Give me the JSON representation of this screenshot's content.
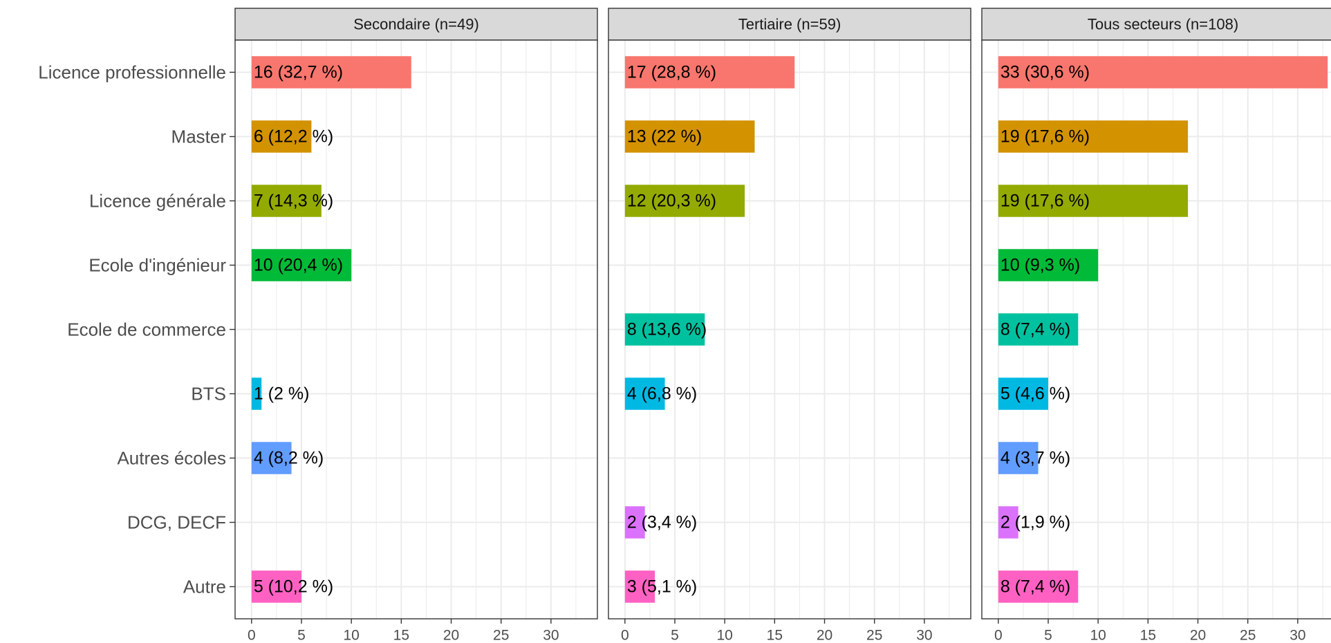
{
  "chart_data": {
    "type": "bar",
    "orientation": "horizontal",
    "categories": [
      "Licence professionnelle",
      "Master",
      "Licence générale",
      "Ecole d'ingénieur",
      "Ecole de commerce",
      "BTS",
      "Autres écoles",
      "DCG, DECF",
      "Autre"
    ],
    "colors": [
      "#F8766D",
      "#D39200",
      "#93AA00",
      "#00BA38",
      "#00C19F",
      "#00B9E3",
      "#619CFF",
      "#DB72FB",
      "#FF61C3"
    ],
    "xlim": [
      -1.65,
      34.65
    ],
    "xticks": [
      0,
      5,
      10,
      15,
      20,
      25,
      30
    ],
    "xtick_labels": [
      "0",
      "5",
      "10",
      "15",
      "20",
      "25",
      "30"
    ],
    "grid": true,
    "legend": "none",
    "panels": [
      {
        "title": "Secondaire (n=49)",
        "values": [
          16,
          6,
          7,
          10,
          null,
          1,
          4,
          null,
          5
        ],
        "labels": [
          "16 (32,7 %)",
          "6 (12,2 %)",
          "7 (14,3 %)",
          "10 (20,4 %)",
          "",
          "1 (2 %)",
          "4 (8,2 %)",
          "",
          "5 (10,2 %)"
        ]
      },
      {
        "title": "Tertiaire (n=59)",
        "values": [
          17,
          13,
          12,
          null,
          8,
          4,
          null,
          2,
          3
        ],
        "labels": [
          "17 (28,8 %)",
          "13 (22 %)",
          "12 (20,3 %)",
          "",
          "8 (13,6 %)",
          "4 (6,8 %)",
          "",
          "2 (3,4 %)",
          "3 (5,1 %)"
        ]
      },
      {
        "title": "Tous secteurs (n=108)",
        "values": [
          33,
          19,
          19,
          10,
          8,
          5,
          4,
          2,
          8
        ],
        "labels": [
          "33 (30,6 %)",
          "19 (17,6 %)",
          "19 (17,6 %)",
          "10 (9,3 %)",
          "8 (7,4 %)",
          "5 (4,6 %)",
          "4 (3,7 %)",
          "2 (1,9 %)",
          "8 (7,4 %)"
        ]
      }
    ]
  }
}
